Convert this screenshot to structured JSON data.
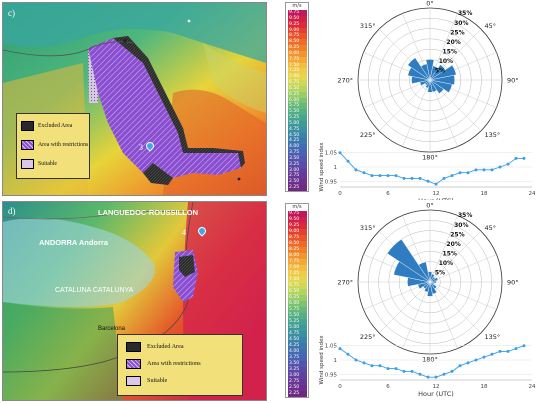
{
  "panels": [
    {
      "id": "c",
      "map": {
        "letter": "c)",
        "site": "3",
        "place_labels": [],
        "legend": [
          {
            "label": "Excluded Area",
            "swatch": "excluded"
          },
          {
            "label": "Area with restrictions",
            "swatch": "restricted"
          },
          {
            "label": "Suitable",
            "swatch": "suitable"
          }
        ]
      },
      "scale": {
        "unit": "m/s",
        "ticks": [
          "9.75",
          "9.50",
          "9.25",
          "9.00",
          "8.75",
          "8.50",
          "8.25",
          "8.00",
          "7.75",
          "7.50",
          "7.25",
          "7.00",
          "6.75",
          "6.50",
          "6.25",
          "6.00",
          "5.75",
          "5.50",
          "5.25",
          "5.00",
          "4.75",
          "4.50",
          "4.25",
          "4.00",
          "3.75",
          "3.50",
          "3.25",
          "3.00",
          "2.75",
          "2.50",
          "2.25"
        ]
      },
      "rose": {
        "n_label": "0°",
        "e_label": "90°",
        "s_label": "180°",
        "w_label": "270°",
        "ne_label": "45°",
        "se_label": "135°",
        "sw_label": "225°",
        "nw_label": "315°",
        "rings": [
          "5%",
          "10%",
          "15%",
          "20%",
          "25%",
          "30%",
          "35%"
        ],
        "sector_values": [
          10,
          7,
          9,
          13,
          12,
          11,
          8,
          6,
          6,
          4,
          3,
          5,
          9,
          11,
          13,
          8
        ]
      },
      "chart_data": {
        "type": "line",
        "x": [
          0,
          1,
          2,
          3,
          4,
          5,
          6,
          7,
          8,
          9,
          10,
          11,
          12,
          13,
          14,
          15,
          16,
          17,
          18,
          19,
          20,
          21,
          22,
          23
        ],
        "y": [
          1.05,
          1.02,
          0.99,
          0.98,
          0.97,
          0.97,
          0.97,
          0.97,
          0.96,
          0.96,
          0.96,
          0.95,
          0.94,
          0.96,
          0.97,
          0.98,
          0.98,
          0.99,
          0.99,
          0.99,
          1.0,
          1.01,
          1.03,
          1.03
        ],
        "xlabel": "Hour (UTC)",
        "ylabel": "Wind speed index",
        "xticks": [
          "0",
          "6",
          "12",
          "18",
          "24"
        ],
        "yticks": [
          "1.05",
          "1",
          "0.95"
        ],
        "xlim": [
          0,
          24
        ],
        "ylim": [
          0.93,
          1.07
        ]
      }
    },
    {
      "id": "d",
      "map": {
        "letter": "d)",
        "site": "4",
        "place_labels": [
          "LANGUEDOC-ROUSSILLON",
          "ANDORRA Andorra",
          "CATALUNA CATALUNYA",
          "Barcelona"
        ],
        "legend": [
          {
            "label": "Excluded Area",
            "swatch": "excluded"
          },
          {
            "label": "Area with restrictions",
            "swatch": "restricted"
          },
          {
            "label": "Suitable",
            "swatch": "suitable"
          }
        ]
      },
      "scale": {
        "unit": "m/s",
        "ticks": [
          "9.75",
          "9.50",
          "9.25",
          "9.00",
          "8.75",
          "8.50",
          "8.25",
          "8.00",
          "7.75",
          "7.50",
          "7.25",
          "7.00",
          "6.75",
          "6.50",
          "6.25",
          "6.00",
          "5.75",
          "5.50",
          "5.25",
          "5.00",
          "4.75",
          "4.50",
          "4.25",
          "4.00",
          "3.75",
          "3.50",
          "3.25",
          "3.00",
          "2.75",
          "2.50",
          "2.25"
        ]
      },
      "rose": {
        "n_label": "0°",
        "e_label": "90°",
        "s_label": "180°",
        "w_label": "270°",
        "ne_label": "45°",
        "se_label": "135°",
        "sw_label": "225°",
        "nw_label": "315°",
        "rings": [
          "5%",
          "10%",
          "15%",
          "20%",
          "25%",
          "30%",
          "35%"
        ],
        "sector_values": [
          5,
          4,
          3,
          4,
          3,
          2,
          4,
          6,
          7,
          5,
          4,
          6,
          11,
          18,
          25,
          10
        ]
      },
      "chart_data": {
        "type": "line",
        "x": [
          0,
          1,
          2,
          3,
          4,
          5,
          6,
          7,
          8,
          9,
          10,
          11,
          12,
          13,
          14,
          15,
          16,
          17,
          18,
          19,
          20,
          21,
          22,
          23
        ],
        "y": [
          1.04,
          1.02,
          1.0,
          0.99,
          0.98,
          0.98,
          0.97,
          0.97,
          0.96,
          0.96,
          0.95,
          0.94,
          0.94,
          0.95,
          0.96,
          0.98,
          0.99,
          1.0,
          1.01,
          1.02,
          1.03,
          1.03,
          1.04,
          1.05
        ],
        "xlabel": "Hour (UTC)",
        "ylabel": "Wind speed index",
        "xticks": [
          "0",
          "6",
          "12",
          "18",
          "24"
        ],
        "yticks": [
          "1.05",
          "1",
          "0.95"
        ],
        "xlim": [
          0,
          24
        ],
        "ylim": [
          0.93,
          1.07
        ]
      }
    }
  ]
}
